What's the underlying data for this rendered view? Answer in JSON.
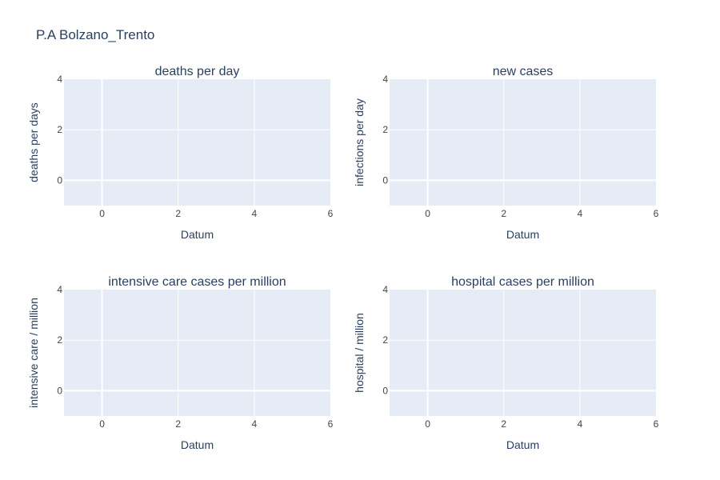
{
  "page": {
    "title": "P.A Bolzano_Trento"
  },
  "chart_data": [
    {
      "type": "line",
      "title": "deaths per day",
      "xlabel": "Datum",
      "ylabel": "deaths per days",
      "xlim": [
        -1,
        6
      ],
      "ylim": [
        -1,
        4
      ],
      "xticks": [
        0,
        2,
        4,
        6
      ],
      "yticks": [
        0,
        2,
        4
      ],
      "grid": true,
      "series": []
    },
    {
      "type": "line",
      "title": "new cases",
      "xlabel": "Datum",
      "ylabel": "infections per day",
      "xlim": [
        -1,
        6
      ],
      "ylim": [
        -1,
        4
      ],
      "xticks": [
        0,
        2,
        4,
        6
      ],
      "yticks": [
        0,
        2,
        4
      ],
      "grid": true,
      "series": []
    },
    {
      "type": "line",
      "title": "intensive care cases per million",
      "xlabel": "Datum",
      "ylabel": "intensive care / million",
      "xlim": [
        -1,
        6
      ],
      "ylim": [
        -1,
        4
      ],
      "xticks": [
        0,
        2,
        4,
        6
      ],
      "yticks": [
        0,
        2,
        4
      ],
      "grid": true,
      "series": []
    },
    {
      "type": "line",
      "title": "hospital cases per million",
      "xlabel": "Datum",
      "ylabel": "hospital / million",
      "xlim": [
        -1,
        6
      ],
      "ylim": [
        -1,
        4
      ],
      "xticks": [
        0,
        2,
        4,
        6
      ],
      "yticks": [
        0,
        2,
        4
      ],
      "grid": true,
      "series": []
    }
  ],
  "colors": {
    "plot_bg": "#e5ecf6",
    "grid": "#ffffff",
    "text": "#2a3f5f",
    "tick_text": "#444444"
  }
}
